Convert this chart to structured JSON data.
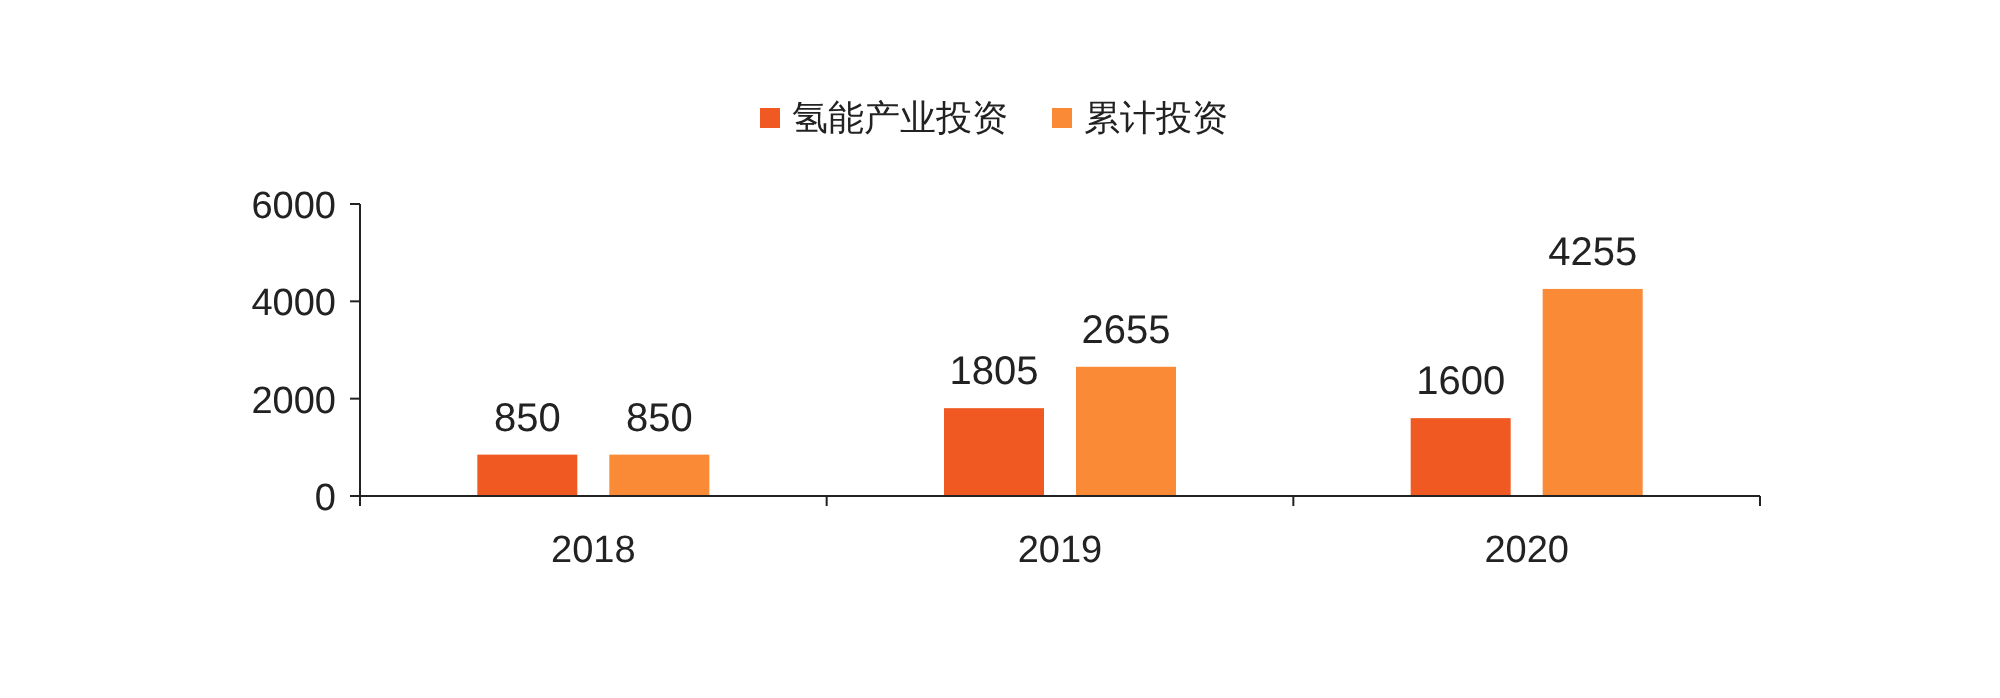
{
  "chart_data": {
    "type": "bar",
    "categories": [
      "2018",
      "2019",
      "2020"
    ],
    "series": [
      {
        "name": "氢能产业投资",
        "color": "#f05a22",
        "values": [
          850,
          1805,
          1600
        ]
      },
      {
        "name": "累计投资",
        "color": "#fb8a36",
        "values": [
          850,
          2655,
          4255
        ]
      }
    ],
    "ylim": [
      0,
      6000
    ],
    "yticks": [
      0,
      2000,
      4000,
      6000
    ],
    "data_labels": true,
    "legend": "top",
    "grid": false
  }
}
